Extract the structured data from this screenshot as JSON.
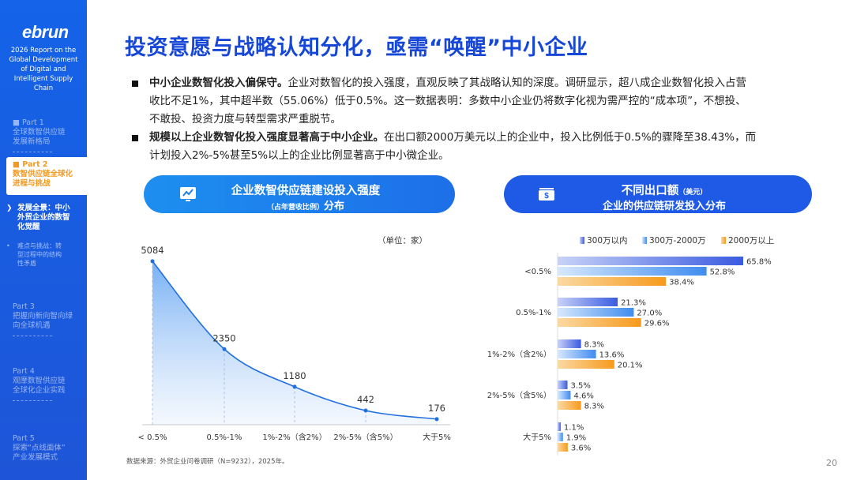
{
  "sidebar": {
    "logo": "ebrun",
    "report_title": [
      "2026 Report on the",
      "Global Development",
      "of Digital and",
      "Intelligent Supply",
      "Chain"
    ],
    "items": [
      {
        "part": "■ Part 1",
        "lines": [
          "全球数智供应链",
          "发展新格局"
        ]
      },
      {
        "part": "■ Part 2",
        "lines": [
          "数智供应链全球化",
          "进程与挑战"
        ]
      },
      {
        "part": "Part 3",
        "lines": [
          "把握向新向智向绿",
          "向全球机遇"
        ]
      },
      {
        "part": "Part 4",
        "lines": [
          "观摩数智供应链",
          "全球化企业实践"
        ]
      },
      {
        "part": "Part 5",
        "lines": [
          "探索“点线面体”",
          "产业发展模式"
        ]
      }
    ],
    "sub_active": {
      "chev": "❯",
      "lines": [
        "发展全景：中小",
        "外贸企业的数智",
        "化觉醒"
      ]
    },
    "sub_2": {
      "dot": "•",
      "lines": [
        "难点与挑战：转",
        "型过程中的结构",
        "性矛盾"
      ]
    }
  },
  "title": "投资意愿与战略认知分化，亟需“唤醒”中小企业",
  "bullets": [
    {
      "bold": "中小企业数智化投入偏保守。",
      "lines": [
        "企业对数智化的投入强度，直观反映了其战略认知的深度。调研显示，超八成企业数智化投入占营",
        "收比不足1%，其中超半数（55.06%）低于0.5%。这一数据表明：多数中小企业仍将数字化视为需严控的“成本项”，不想投、",
        "不敢投、投资力度与转型需求严重脱节。"
      ]
    },
    {
      "bold": "规模以上企业数智化投入强度显著高于中小企业。",
      "lines": [
        "在出口额2000万美元以上的企业中，投入比例低于0.5%的骤降至38.43%，而",
        "计划投入2%-5%甚至5%以上的企业比例显著高于中小微企业。"
      ]
    }
  ],
  "pill_left": {
    "line1": "企业数智供应链建设投入强度",
    "line2_small": "（占年营收比例）",
    "line2": "分布",
    "icon": "chart-monitor-icon"
  },
  "pill_right": {
    "line1": "不同出口额",
    "line1_small": "（美元）",
    "line2": "企业的供应链研发投入分布",
    "icon": "money-icon"
  },
  "unit_label": "（单位：家）",
  "source": "数据来源：外贸企业问卷调研（N=9232），2025年。",
  "page_number": "20",
  "colors": {
    "title": "#1747d6",
    "sidebar": "#1463e8",
    "accent_orange": "#f39a22"
  },
  "chart_data": [
    {
      "type": "area",
      "categories": [
        "< 0.5%",
        "0.5%-1%",
        "1%-2%（含2%）",
        "2%-5%（含5%）",
        "大于5%"
      ],
      "values": [
        5084,
        2350,
        1180,
        442,
        176
      ],
      "ylim": [
        0,
        5400
      ],
      "grid": false
    },
    {
      "type": "bar",
      "orientation": "horizontal",
      "categories": [
        "<0.5%",
        "0.5%-1%",
        "1%-2%（含2%）",
        "2%-5%（含5%）",
        "大于5%"
      ],
      "series": [
        {
          "name": "300万以内",
          "values": [
            65.8,
            21.3,
            8.3,
            3.5,
            1.1
          ],
          "labels": [
            "65.8%",
            "21.3%",
            "8.3%",
            "3.5%",
            "1.1%"
          ],
          "color": "#4467e6"
        },
        {
          "name": "300万-2000万",
          "values": [
            52.8,
            27.0,
            13.6,
            4.6,
            1.9
          ],
          "labels": [
            "52.8%",
            "27.0%",
            "13.6%",
            "4.6%",
            "1.9%"
          ],
          "color": "#4a90f0"
        },
        {
          "name": "2000万以上",
          "values": [
            38.4,
            29.6,
            20.1,
            8.3,
            3.6
          ],
          "labels": [
            "38.4%",
            "29.6%",
            "20.1%",
            "8.3%",
            "3.6%"
          ],
          "color": "#f7a32a"
        }
      ],
      "xlim": [
        0,
        70
      ],
      "legend": "top"
    }
  ]
}
